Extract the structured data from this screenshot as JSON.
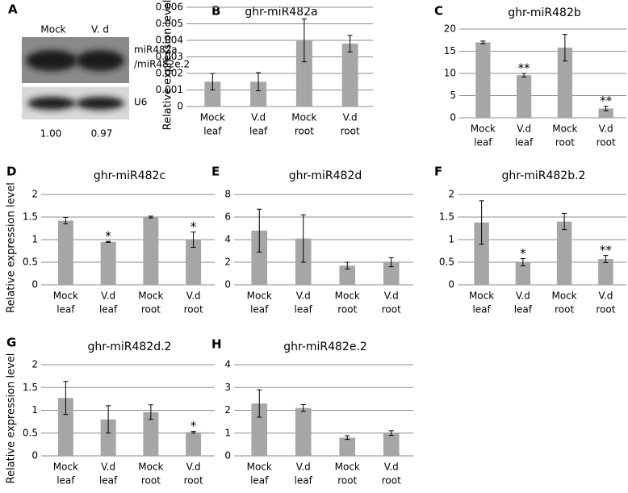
{
  "blot": {
    "label": "A",
    "lanes": [
      "Mock",
      "V. d"
    ],
    "bands": [
      [
        "miR482a",
        "/miR482e.2"
      ],
      [
        "U6"
      ]
    ],
    "ratios": [
      "1.00",
      "0.97"
    ]
  },
  "chart_data": [
    {
      "type": "bar",
      "label": "B",
      "title": "ghr-miR482a",
      "ylabel": "Relative expression level",
      "categories": [
        [
          "Mock",
          "leaf"
        ],
        [
          "V.d",
          "leaf"
        ],
        [
          "Mock",
          "root"
        ],
        [
          "V.d",
          "root"
        ]
      ],
      "values": [
        0.0015,
        0.0015,
        0.004,
        0.0038
      ],
      "errors": [
        0.0005,
        0.00055,
        0.0013,
        0.0005
      ],
      "annotations": [
        null,
        null,
        null,
        null
      ],
      "color": "#a6a6a6",
      "ylim": [
        0,
        0.006
      ],
      "yticks": [
        0,
        0.001,
        0.002,
        0.003,
        0.004,
        0.005,
        0.006
      ],
      "grid": true
    },
    {
      "type": "bar",
      "label": "C",
      "title": "ghr-miR482b",
      "categories": [
        [
          "Mock",
          "leaf"
        ],
        [
          "V.d",
          "leaf"
        ],
        [
          "Mock",
          "root"
        ],
        [
          "V.d",
          "root"
        ]
      ],
      "values": [
        17,
        9.6,
        15.8,
        2.1
      ],
      "errors": [
        0.3,
        0.4,
        3,
        0.5
      ],
      "annotations": [
        null,
        "**",
        null,
        "**"
      ],
      "color": "#a6a6a6",
      "ylim": [
        0,
        20
      ],
      "yticks": [
        0,
        5,
        10,
        15,
        20
      ],
      "grid": true
    },
    {
      "type": "bar",
      "label": "D",
      "title": "ghr-miR482c",
      "ylabel": "Relative expression level",
      "categories": [
        [
          "Mock",
          "leaf"
        ],
        [
          "V.d",
          "leaf"
        ],
        [
          "Mock",
          "root"
        ],
        [
          "V.d",
          "root"
        ]
      ],
      "values": [
        1.42,
        0.95,
        1.5,
        1.0
      ],
      "errors": [
        0.07,
        0.01,
        0.02,
        0.17
      ],
      "annotations": [
        null,
        "*",
        null,
        "*"
      ],
      "color": "#a6a6a6",
      "ylim": [
        0,
        2
      ],
      "yticks": [
        0,
        0.5,
        1,
        1.5,
        2
      ],
      "grid": true
    },
    {
      "type": "bar",
      "label": "E",
      "title": "ghr-miR482d",
      "categories": [
        [
          "Mock",
          "leaf"
        ],
        [
          "V.d",
          "leaf"
        ],
        [
          "Mock",
          "root"
        ],
        [
          "V.d",
          "root"
        ]
      ],
      "values": [
        4.8,
        4.1,
        1.7,
        2.0
      ],
      "errors": [
        1.9,
        2.1,
        0.3,
        0.4
      ],
      "annotations": [
        null,
        null,
        null,
        null
      ],
      "color": "#a6a6a6",
      "ylim": [
        0,
        8
      ],
      "yticks": [
        0,
        2,
        4,
        6,
        8
      ],
      "grid": true
    },
    {
      "type": "bar",
      "label": "F",
      "title": "ghr-miR482b.2",
      "categories": [
        [
          "Mock",
          "leaf"
        ],
        [
          "V.d",
          "leaf"
        ],
        [
          "Mock",
          "root"
        ],
        [
          "V.d",
          "root"
        ]
      ],
      "values": [
        1.38,
        0.5,
        1.4,
        0.57
      ],
      "errors": [
        0.48,
        0.08,
        0.18,
        0.08
      ],
      "annotations": [
        null,
        "*",
        null,
        "**"
      ],
      "color": "#a6a6a6",
      "ylim": [
        0,
        2
      ],
      "yticks": [
        0,
        0.5,
        1,
        1.5,
        2
      ],
      "grid": true
    },
    {
      "type": "bar",
      "label": "G",
      "title": "ghr-miR482d.2",
      "ylabel": "Relative expression level",
      "categories": [
        [
          "Mock",
          "leaf"
        ],
        [
          "V.d",
          "leaf"
        ],
        [
          "Mock",
          "root"
        ],
        [
          "V.d",
          "root"
        ]
      ],
      "values": [
        1.27,
        0.8,
        0.96,
        0.52
      ],
      "errors": [
        0.36,
        0.3,
        0.16,
        0.02
      ],
      "annotations": [
        null,
        null,
        null,
        "*"
      ],
      "color": "#a6a6a6",
      "ylim": [
        0,
        2
      ],
      "yticks": [
        0,
        0.5,
        1,
        1.5,
        2
      ],
      "grid": true
    },
    {
      "type": "bar",
      "label": "H",
      "title": "ghr-miR482e.2",
      "categories": [
        [
          "Mock",
          "leaf"
        ],
        [
          "V.d",
          "leaf"
        ],
        [
          "Mock",
          "root"
        ],
        [
          "V.d",
          "root"
        ]
      ],
      "values": [
        2.3,
        2.1,
        0.8,
        1.0
      ],
      "errors": [
        0.6,
        0.15,
        0.08,
        0.1
      ],
      "annotations": [
        null,
        null,
        null,
        null
      ],
      "color": "#a6a6a6",
      "ylim": [
        0,
        4
      ],
      "yticks": [
        0,
        1,
        2,
        3,
        4
      ],
      "grid": true
    }
  ]
}
